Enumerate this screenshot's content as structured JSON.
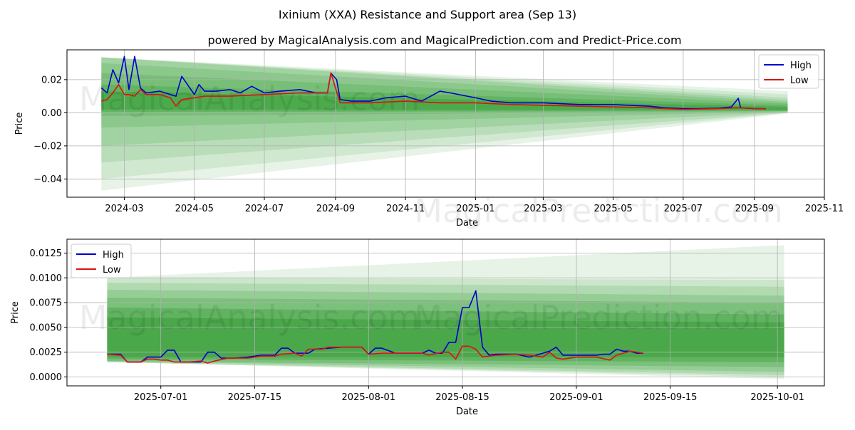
{
  "title": "Ixinium (XXA) Resistance and Support area (Sep 13)",
  "subtitle": "powered by MagicalAnalysis.com and MagicalPrediction.com and Predict-Price.com",
  "watermarks": [
    "MagicalAnalysis.com",
    "MagicalPrediction.com"
  ],
  "colors": {
    "high": "#0000cc",
    "low": "#dd1111",
    "band": "#2e9a2e",
    "grid": "#b0b0b0"
  },
  "chart_data": [
    {
      "type": "line",
      "xlabel": "Date",
      "ylabel": "Price",
      "xlim": [
        "2024-01-11",
        "2025-11-01"
      ],
      "ylim": [
        -0.051,
        0.038
      ],
      "x_ticks": [
        "2024-03",
        "2024-05",
        "2024-07",
        "2024-09",
        "2024-11",
        "2025-01",
        "2025-03",
        "2025-05",
        "2025-07",
        "2025-09",
        "2025-11"
      ],
      "y_ticks": [
        "0.02",
        "0.00",
        "−0.02",
        "−0.04"
      ],
      "y_tick_values": [
        0.02,
        0.0,
        -0.02,
        -0.04
      ],
      "grid": true,
      "legend_position": "top-right",
      "series": [
        {
          "name": "High",
          "color": "#0000cc",
          "x": [
            "2024-02-10",
            "2024-02-15",
            "2024-02-20",
            "2024-02-25",
            "2024-03-01",
            "2024-03-05",
            "2024-03-10",
            "2024-03-15",
            "2024-03-20",
            "2024-04-01",
            "2024-04-10",
            "2024-04-15",
            "2024-04-20",
            "2024-05-01",
            "2024-05-05",
            "2024-05-10",
            "2024-05-20",
            "2024-06-01",
            "2024-06-10",
            "2024-06-20",
            "2024-07-01",
            "2024-07-15",
            "2024-08-01",
            "2024-08-15",
            "2024-08-25",
            "2024-08-28",
            "2024-09-02",
            "2024-09-05",
            "2024-09-15",
            "2024-10-01",
            "2024-10-15",
            "2024-11-01",
            "2024-11-15",
            "2024-12-01",
            "2024-12-10",
            "2025-01-01",
            "2025-01-15",
            "2025-02-01",
            "2025-03-01",
            "2025-04-01",
            "2025-04-20",
            "2025-05-01",
            "2025-05-15",
            "2025-06-01",
            "2025-06-15",
            "2025-07-01",
            "2025-07-15",
            "2025-08-01",
            "2025-08-12",
            "2025-08-16",
            "2025-08-18",
            "2025-08-20",
            "2025-09-01",
            "2025-09-11"
          ],
          "y": [
            0.015,
            0.012,
            0.026,
            0.018,
            0.034,
            0.014,
            0.034,
            0.015,
            0.012,
            0.013,
            0.011,
            0.01,
            0.022,
            0.011,
            0.017,
            0.013,
            0.013,
            0.014,
            0.012,
            0.016,
            0.012,
            0.013,
            0.014,
            0.012,
            0.012,
            0.024,
            0.02,
            0.008,
            0.007,
            0.007,
            0.009,
            0.01,
            0.007,
            0.013,
            0.012,
            0.009,
            0.007,
            0.006,
            0.006,
            0.005,
            0.005,
            0.005,
            0.0045,
            0.004,
            0.003,
            0.0025,
            0.0025,
            0.0028,
            0.0035,
            0.007,
            0.0087,
            0.003,
            0.0025,
            0.0024
          ]
        },
        {
          "name": "Low",
          "color": "#dd1111",
          "x": [
            "2024-02-10",
            "2024-02-15",
            "2024-02-20",
            "2024-02-25",
            "2024-03-01",
            "2024-03-05",
            "2024-03-10",
            "2024-03-15",
            "2024-03-20",
            "2024-04-01",
            "2024-04-10",
            "2024-04-15",
            "2024-04-20",
            "2024-05-01",
            "2024-05-10",
            "2024-06-01",
            "2024-07-01",
            "2024-08-01",
            "2024-08-25",
            "2024-08-28",
            "2024-09-05",
            "2024-10-01",
            "2024-11-01",
            "2024-12-01",
            "2025-01-01",
            "2025-02-01",
            "2025-03-01",
            "2025-04-01",
            "2025-05-01",
            "2025-06-01",
            "2025-07-01",
            "2025-08-01",
            "2025-08-16",
            "2025-09-11"
          ],
          "y": [
            0.007,
            0.008,
            0.012,
            0.017,
            0.011,
            0.011,
            0.01,
            0.014,
            0.011,
            0.011,
            0.009,
            0.004,
            0.008,
            0.009,
            0.01,
            0.01,
            0.011,
            0.012,
            0.012,
            0.024,
            0.006,
            0.006,
            0.007,
            0.006,
            0.006,
            0.005,
            0.0045,
            0.004,
            0.0035,
            0.003,
            0.002,
            0.0025,
            0.003,
            0.0024
          ]
        }
      ]
    },
    {
      "type": "line",
      "xlabel": "Date",
      "ylabel": "Price",
      "xlim": [
        "2025-06-17",
        "2025-10-08"
      ],
      "ylim": [
        -0.0009,
        0.0139
      ],
      "x_ticks": [
        "2025-07-01",
        "2025-07-15",
        "2025-08-01",
        "2025-08-15",
        "2025-09-01",
        "2025-09-15",
        "2025-10-01"
      ],
      "y_ticks": [
        "0.0125",
        "0.0100",
        "0.0075",
        "0.0050",
        "0.0025",
        "0.0000"
      ],
      "y_tick_values": [
        0.0125,
        0.01,
        0.0075,
        0.005,
        0.0025,
        0.0
      ],
      "grid": true,
      "legend_position": "top-left",
      "series": [
        {
          "name": "High",
          "color": "#0000cc",
          "x": [
            "2025-06-23",
            "2025-06-25",
            "2025-06-26",
            "2025-06-28",
            "2025-06-29",
            "2025-06-30",
            "2025-07-01",
            "2025-07-02",
            "2025-07-03",
            "2025-07-04",
            "2025-07-05",
            "2025-07-06",
            "2025-07-07",
            "2025-07-08",
            "2025-07-09",
            "2025-07-10",
            "2025-07-12",
            "2025-07-14",
            "2025-07-16",
            "2025-07-18",
            "2025-07-19",
            "2025-07-20",
            "2025-07-21",
            "2025-07-23",
            "2025-07-24",
            "2025-07-26",
            "2025-07-28",
            "2025-07-30",
            "2025-07-31",
            "2025-08-01",
            "2025-08-02",
            "2025-08-03",
            "2025-08-05",
            "2025-08-07",
            "2025-08-08",
            "2025-08-09",
            "2025-08-10",
            "2025-08-11",
            "2025-08-12",
            "2025-08-13",
            "2025-08-14",
            "2025-08-15",
            "2025-08-16",
            "2025-08-17",
            "2025-08-18",
            "2025-08-19",
            "2025-08-20",
            "2025-08-23",
            "2025-08-25",
            "2025-08-27",
            "2025-08-28",
            "2025-08-29",
            "2025-08-30",
            "2025-08-31",
            "2025-09-02",
            "2025-09-04",
            "2025-09-05",
            "2025-09-06",
            "2025-09-07",
            "2025-09-08",
            "2025-09-09",
            "2025-09-10",
            "2025-09-11"
          ],
          "y": [
            0.0023,
            0.0023,
            0.0015,
            0.0015,
            0.002,
            0.002,
            0.002,
            0.0027,
            0.0027,
            0.0015,
            0.0015,
            0.0015,
            0.0015,
            0.0025,
            0.0025,
            0.0019,
            0.0019,
            0.002,
            0.0022,
            0.0022,
            0.0029,
            0.0029,
            0.0024,
            0.0024,
            0.0028,
            0.0029,
            0.003,
            0.003,
            0.003,
            0.0023,
            0.0029,
            0.0029,
            0.0024,
            0.0024,
            0.0024,
            0.0024,
            0.0027,
            0.0024,
            0.0024,
            0.0035,
            0.0035,
            0.007,
            0.007,
            0.0087,
            0.003,
            0.0022,
            0.0023,
            0.0023,
            0.002,
            0.0024,
            0.0026,
            0.003,
            0.0022,
            0.0022,
            0.0022,
            0.0022,
            0.0023,
            0.0023,
            0.0028,
            0.0026,
            0.0026,
            0.0024,
            0.0024
          ]
        },
        {
          "name": "Low",
          "color": "#dd1111",
          "x": [
            "2025-06-23",
            "2025-06-25",
            "2025-06-26",
            "2025-06-28",
            "2025-06-29",
            "2025-06-30",
            "2025-07-01",
            "2025-07-02",
            "2025-07-03",
            "2025-07-05",
            "2025-07-07",
            "2025-07-08",
            "2025-07-09",
            "2025-07-11",
            "2025-07-14",
            "2025-07-16",
            "2025-07-18",
            "2025-07-19",
            "2025-07-21",
            "2025-07-22",
            "2025-07-23",
            "2025-07-25",
            "2025-07-26",
            "2025-07-28",
            "2025-07-30",
            "2025-07-31",
            "2025-08-01",
            "2025-08-03",
            "2025-08-05",
            "2025-08-07",
            "2025-08-09",
            "2025-08-10",
            "2025-08-12",
            "2025-08-13",
            "2025-08-14",
            "2025-08-15",
            "2025-08-16",
            "2025-08-17",
            "2025-08-18",
            "2025-08-20",
            "2025-08-23",
            "2025-08-25",
            "2025-08-27",
            "2025-08-28",
            "2025-08-29",
            "2025-08-30",
            "2025-09-01",
            "2025-09-03",
            "2025-09-04",
            "2025-09-06",
            "2025-09-07",
            "2025-09-09",
            "2025-09-11"
          ],
          "y": [
            0.0023,
            0.0022,
            0.0015,
            0.0015,
            0.0018,
            0.0018,
            0.0017,
            0.0017,
            0.0015,
            0.0015,
            0.0016,
            0.0014,
            0.0016,
            0.0019,
            0.0019,
            0.0021,
            0.0021,
            0.0023,
            0.0024,
            0.0021,
            0.0028,
            0.0028,
            0.003,
            0.003,
            0.003,
            0.003,
            0.0023,
            0.0024,
            0.0024,
            0.0024,
            0.0024,
            0.0022,
            0.0025,
            0.0025,
            0.0018,
            0.0031,
            0.0031,
            0.0028,
            0.002,
            0.0022,
            0.0023,
            0.0022,
            0.002,
            0.0025,
            0.0019,
            0.0018,
            0.002,
            0.002,
            0.002,
            0.0017,
            0.0022,
            0.0026,
            0.0024
          ]
        }
      ]
    }
  ]
}
